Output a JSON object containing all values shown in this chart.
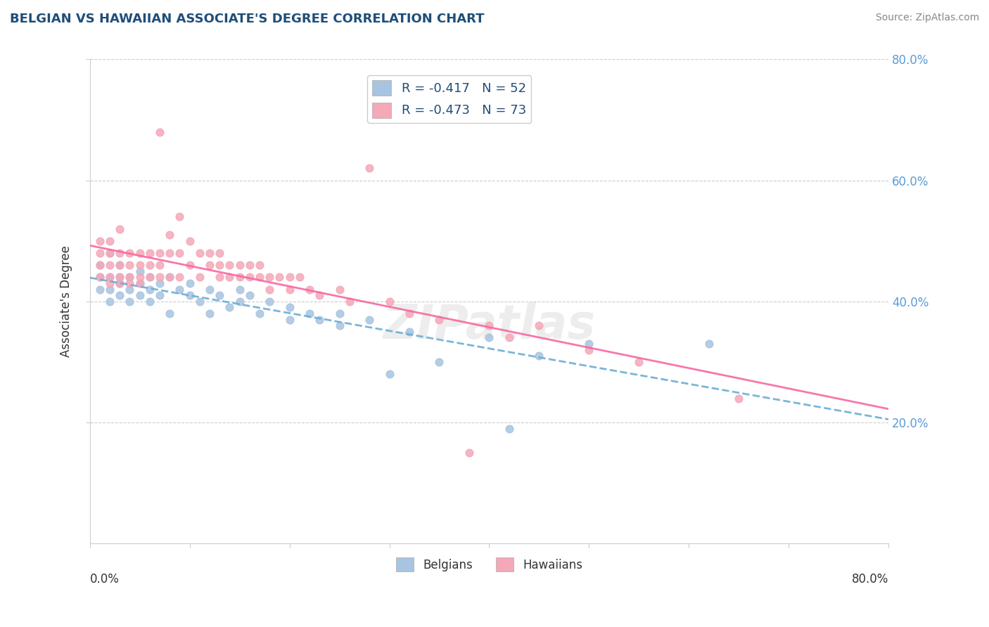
{
  "title": "BELGIAN VS HAWAIIAN ASSOCIATE'S DEGREE CORRELATION CHART",
  "source": "Source: ZipAtlas.com",
  "ylabel": "Associate's Degree",
  "xlim": [
    0.0,
    0.8
  ],
  "ylim": [
    0.0,
    0.8
  ],
  "yticks": [
    0.2,
    0.4,
    0.6,
    0.8
  ],
  "ytick_labels": [
    "20.0%",
    "40.0%",
    "60.0%",
    "80.0%"
  ],
  "belgian_color": "#a8c4e0",
  "hawaiian_color": "#f4a8b8",
  "belgian_line_color": "#6baed6",
  "hawaiian_line_color": "#f768a1",
  "legend_label_belgian": "R = -0.417   N = 52",
  "legend_label_hawaiian": "R = -0.473   N = 73",
  "belgian_scatter": [
    [
      0.01,
      0.44
    ],
    [
      0.01,
      0.46
    ],
    [
      0.01,
      0.42
    ],
    [
      0.02,
      0.48
    ],
    [
      0.02,
      0.44
    ],
    [
      0.02,
      0.4
    ],
    [
      0.02,
      0.42
    ],
    [
      0.03,
      0.44
    ],
    [
      0.03,
      0.46
    ],
    [
      0.03,
      0.43
    ],
    [
      0.03,
      0.41
    ],
    [
      0.04,
      0.44
    ],
    [
      0.04,
      0.42
    ],
    [
      0.04,
      0.4
    ],
    [
      0.05,
      0.43
    ],
    [
      0.05,
      0.41
    ],
    [
      0.05,
      0.45
    ],
    [
      0.06,
      0.44
    ],
    [
      0.06,
      0.42
    ],
    [
      0.06,
      0.4
    ],
    [
      0.07,
      0.43
    ],
    [
      0.07,
      0.41
    ],
    [
      0.08,
      0.44
    ],
    [
      0.08,
      0.38
    ],
    [
      0.09,
      0.42
    ],
    [
      0.1,
      0.43
    ],
    [
      0.1,
      0.41
    ],
    [
      0.11,
      0.4
    ],
    [
      0.12,
      0.42
    ],
    [
      0.12,
      0.38
    ],
    [
      0.13,
      0.41
    ],
    [
      0.14,
      0.39
    ],
    [
      0.15,
      0.42
    ],
    [
      0.15,
      0.4
    ],
    [
      0.16,
      0.41
    ],
    [
      0.17,
      0.38
    ],
    [
      0.18,
      0.4
    ],
    [
      0.2,
      0.39
    ],
    [
      0.2,
      0.37
    ],
    [
      0.22,
      0.38
    ],
    [
      0.23,
      0.37
    ],
    [
      0.25,
      0.38
    ],
    [
      0.25,
      0.36
    ],
    [
      0.28,
      0.37
    ],
    [
      0.3,
      0.28
    ],
    [
      0.32,
      0.35
    ],
    [
      0.35,
      0.3
    ],
    [
      0.4,
      0.34
    ],
    [
      0.42,
      0.19
    ],
    [
      0.45,
      0.31
    ],
    [
      0.5,
      0.33
    ],
    [
      0.62,
      0.33
    ]
  ],
  "hawaiian_scatter": [
    [
      0.01,
      0.5
    ],
    [
      0.01,
      0.48
    ],
    [
      0.01,
      0.46
    ],
    [
      0.01,
      0.44
    ],
    [
      0.02,
      0.5
    ],
    [
      0.02,
      0.48
    ],
    [
      0.02,
      0.46
    ],
    [
      0.02,
      0.44
    ],
    [
      0.02,
      0.43
    ],
    [
      0.03,
      0.52
    ],
    [
      0.03,
      0.48
    ],
    [
      0.03,
      0.46
    ],
    [
      0.03,
      0.44
    ],
    [
      0.03,
      0.43
    ],
    [
      0.04,
      0.48
    ],
    [
      0.04,
      0.46
    ],
    [
      0.04,
      0.44
    ],
    [
      0.04,
      0.43
    ],
    [
      0.05,
      0.48
    ],
    [
      0.05,
      0.46
    ],
    [
      0.05,
      0.44
    ],
    [
      0.05,
      0.43
    ],
    [
      0.06,
      0.48
    ],
    [
      0.06,
      0.46
    ],
    [
      0.06,
      0.44
    ],
    [
      0.07,
      0.68
    ],
    [
      0.07,
      0.48
    ],
    [
      0.07,
      0.46
    ],
    [
      0.07,
      0.44
    ],
    [
      0.08,
      0.51
    ],
    [
      0.08,
      0.48
    ],
    [
      0.08,
      0.44
    ],
    [
      0.09,
      0.54
    ],
    [
      0.09,
      0.48
    ],
    [
      0.09,
      0.44
    ],
    [
      0.1,
      0.5
    ],
    [
      0.1,
      0.46
    ],
    [
      0.11,
      0.48
    ],
    [
      0.11,
      0.44
    ],
    [
      0.12,
      0.48
    ],
    [
      0.12,
      0.46
    ],
    [
      0.13,
      0.48
    ],
    [
      0.13,
      0.46
    ],
    [
      0.13,
      0.44
    ],
    [
      0.14,
      0.46
    ],
    [
      0.14,
      0.44
    ],
    [
      0.15,
      0.46
    ],
    [
      0.15,
      0.44
    ],
    [
      0.16,
      0.46
    ],
    [
      0.16,
      0.44
    ],
    [
      0.17,
      0.46
    ],
    [
      0.17,
      0.44
    ],
    [
      0.18,
      0.44
    ],
    [
      0.18,
      0.42
    ],
    [
      0.19,
      0.44
    ],
    [
      0.2,
      0.44
    ],
    [
      0.2,
      0.42
    ],
    [
      0.21,
      0.44
    ],
    [
      0.22,
      0.42
    ],
    [
      0.23,
      0.41
    ],
    [
      0.25,
      0.42
    ],
    [
      0.26,
      0.4
    ],
    [
      0.28,
      0.62
    ],
    [
      0.3,
      0.4
    ],
    [
      0.32,
      0.38
    ],
    [
      0.35,
      0.37
    ],
    [
      0.38,
      0.15
    ],
    [
      0.4,
      0.36
    ],
    [
      0.42,
      0.34
    ],
    [
      0.45,
      0.36
    ],
    [
      0.5,
      0.32
    ],
    [
      0.55,
      0.3
    ],
    [
      0.65,
      0.24
    ]
  ]
}
